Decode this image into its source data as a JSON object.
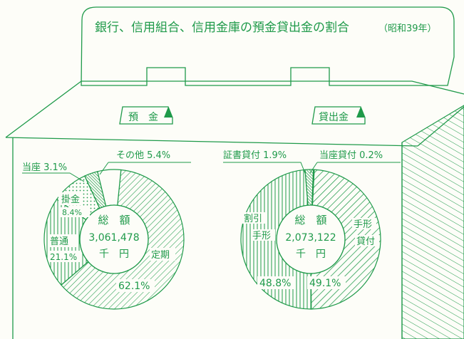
{
  "colors": {
    "ink": "#1f9a4a",
    "paper": "#fdfdf8"
  },
  "header": {
    "title": "銀行、信用組合、信用金庫の預金貸出金の割合",
    "year": "（昭和39年）"
  },
  "chart_data": [
    {
      "type": "pie",
      "title": "預　金",
      "center_label": {
        "line1": "総　額",
        "line2": "3,061,478",
        "line3": "千　円"
      },
      "slices": [
        {
          "name": "定期",
          "value": 62.1,
          "label": "62.1%",
          "pattern": "diag-fine"
        },
        {
          "name": "普通",
          "value": 21.1,
          "label": "21.1%",
          "pattern": "vertical"
        },
        {
          "name": "掛金",
          "value": 8.4,
          "label": "8.4%",
          "pattern": "dots"
        },
        {
          "name": "当座",
          "value": 3.1,
          "label": "3.1%",
          "pattern": "dense"
        },
        {
          "name": "その他",
          "value": 5.4,
          "label": "5.4%",
          "pattern": "blank"
        }
      ],
      "callouts": {
        "teiki_name": "定期",
        "teiki_pct": "62.1%",
        "futsu_name": "普通",
        "futsu_pct": "21.1%",
        "kakekin_name": "掛金",
        "kakekin_pct": "8.4%",
        "touza": "当座 3.1%",
        "sonota": "その他 5.4%"
      }
    },
    {
      "type": "pie",
      "title": "貸出金",
      "center_label": {
        "line1": "総　額",
        "line2": "2,073,122",
        "line3": "千　円"
      },
      "slices": [
        {
          "name": "手形貸付",
          "value": 49.1,
          "label": "49.1%",
          "pattern": "diag-bold"
        },
        {
          "name": "割引手形",
          "value": 48.8,
          "label": "48.8%",
          "pattern": "vertical"
        },
        {
          "name": "証書貸付",
          "value": 1.9,
          "label": "1.9%",
          "pattern": "dense"
        },
        {
          "name": "当座貸付",
          "value": 0.2,
          "label": "0.2%",
          "pattern": "blank"
        }
      ],
      "callouts": {
        "tegata_l1": "手形",
        "tegata_l2": "貸付",
        "tegata_pct": "49.1%",
        "waribiki_l1": "割引",
        "waribiki_l2": "手形",
        "waribiki_pct": "48.8%",
        "shousho": "証書貸付 1.9%",
        "touza": "当座貸付 0.2%"
      }
    }
  ]
}
